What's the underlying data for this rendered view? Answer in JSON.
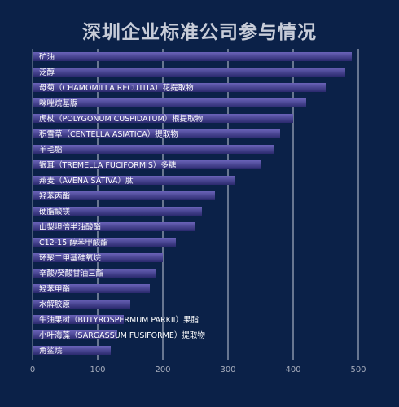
{
  "chart_data": {
    "type": "bar",
    "orientation": "horizontal",
    "title": "深圳企业标准公司参与情况",
    "xlabel": "",
    "ylabel": "",
    "xlim": [
      0,
      500
    ],
    "xticks": [
      0,
      100,
      200,
      300,
      400,
      500
    ],
    "grid": true,
    "categories": [
      "矿油",
      "泛醇",
      "母菊（CHAMOMILLA RECUTITA）花提取物",
      "咪唑烷基脲",
      "虎杖（POLYGONUM CUSPIDATUM）根提取物",
      "积雪草（CENTELLA ASIATICA）提取物",
      "羊毛脂",
      "银耳（TREMELLA FUCIFORMIS）多糖",
      "燕麦（AVENA SATIVA）肽",
      "羟苯丙酯",
      "硬脂酸镁",
      "山梨坦倍半油酸酯",
      "C12-15 醇苯甲酸酯",
      "环聚二甲基硅氧烷",
      "辛酸/癸酸甘油三酯",
      "羟苯甲酯",
      "水解胶原",
      "牛油果树（BUTYROSPERMUM PARKII）果脂",
      "小叶海藻（SARGASSUM FUSIFORME）提取物",
      "角鲨烷"
    ],
    "values": [
      490,
      480,
      450,
      420,
      400,
      380,
      370,
      350,
      310,
      280,
      260,
      250,
      220,
      200,
      190,
      180,
      150,
      140,
      130,
      120
    ]
  },
  "colors": {
    "background": "#0b2148",
    "bar_top": "#6a63b8",
    "bar_bottom": "#2b2a6e",
    "grid": "#d9dde8",
    "axis_text": "#a7adbc",
    "label_text": "#ffffff",
    "title": "#c7ccd8"
  }
}
